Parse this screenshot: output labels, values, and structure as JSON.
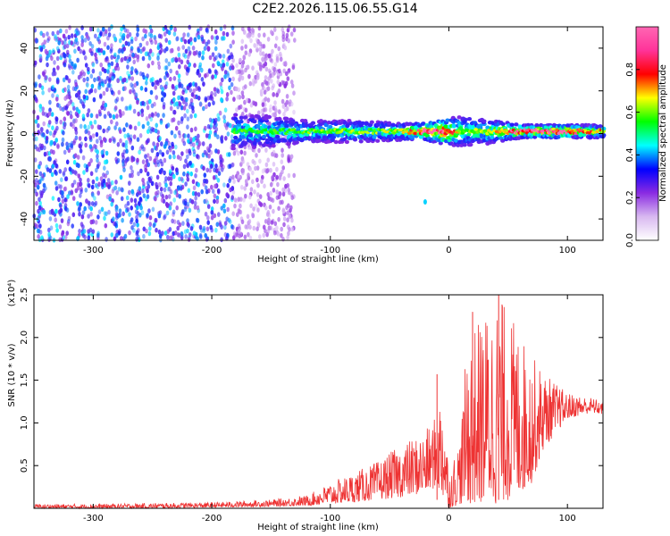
{
  "figure": {
    "title": "C2E2.2026.115.06.55.G14"
  },
  "chart_data": [
    {
      "type": "heatmap",
      "xlabel": "Height of straight line (km)",
      "ylabel": "Frequency (Hz)",
      "xlim": [
        -350,
        130
      ],
      "ylim": [
        -50,
        50
      ],
      "xticks": [
        -300,
        -200,
        -100,
        0,
        100
      ],
      "xtick_labels": [
        "-300",
        "-200",
        "-100",
        "0",
        "100"
      ],
      "yticks": [
        -40,
        -20,
        0,
        20,
        40
      ],
      "ytick_labels": [
        "-40",
        "-20",
        "0",
        "20",
        "40"
      ],
      "colorbar": {
        "label": "Normalized spectral amplitude",
        "range": [
          0,
          1
        ],
        "ticks": [
          0.0,
          0.2,
          0.4,
          0.6,
          0.8
        ],
        "tick_labels": [
          "0.0",
          "0.2",
          "0.4",
          "0.6",
          "0.8"
        ],
        "colors": [
          "#ffffff",
          "#8a2be2",
          "#2020ff",
          "#00ffff",
          "#00ff00",
          "#ffff00",
          "#ff0000",
          "#ff69b4"
        ]
      },
      "noise_region": {
        "x": [
          -350,
          -130
        ],
        "amplitude": 0.12
      },
      "signal_band": {
        "x_start": -182,
        "x_end": 130,
        "centre_frequency": 1,
        "points": [
          {
            "x": -180,
            "halfwidth": 8,
            "peak": 0.45
          },
          {
            "x": -150,
            "halfwidth": 7,
            "peak": 0.45
          },
          {
            "x": -120,
            "halfwidth": 5,
            "peak": 0.48
          },
          {
            "x": -80,
            "halfwidth": 5,
            "peak": 0.5
          },
          {
            "x": -40,
            "halfwidth": 4,
            "peak": 0.55
          },
          {
            "x": -20,
            "halfwidth": 4,
            "peak": 0.9
          },
          {
            "x": -5,
            "halfwidth": 6,
            "peak": 0.95
          },
          {
            "x": 10,
            "halfwidth": 7,
            "peak": 0.5
          },
          {
            "x": 30,
            "halfwidth": 6,
            "peak": 0.52
          },
          {
            "x": 60,
            "halfwidth": 3,
            "peak": 0.88
          },
          {
            "x": 90,
            "halfwidth": 3,
            "peak": 0.9
          },
          {
            "x": 130,
            "halfwidth": 3,
            "peak": 0.62
          }
        ],
        "outliers": [
          {
            "x": -20,
            "y": -32,
            "value": 0.4
          }
        ]
      }
    },
    {
      "type": "line",
      "xlabel": "Height of straight line (km)",
      "ylabel": "SNR (10 * v/v)",
      "scale_label": "(x10⁴)",
      "xlim": [
        -350,
        130
      ],
      "ylim": [
        0,
        2.5
      ],
      "xticks": [
        -300,
        -200,
        -100,
        0,
        100
      ],
      "xtick_labels": [
        "-300",
        "-200",
        "-100",
        "0",
        "100"
      ],
      "yticks": [
        0.5,
        1.0,
        1.5,
        2.0,
        2.5
      ],
      "ytick_labels": [
        "0.5",
        "1.0",
        "1.5",
        "2.0",
        "2.5"
      ],
      "series": [
        {
          "name": "SNR",
          "color": "#ee3333",
          "envelope": {
            "x": [
              -350,
              -300,
              -250,
              -200,
              -150,
              -120,
              -100,
              -80,
              -60,
              -40,
              -20,
              -10,
              -5,
              0,
              10,
              15,
              20,
              30,
              40,
              45,
              55,
              70,
              80,
              100,
              120,
              130
            ],
            "low": [
              0.0,
              0.0,
              0.0,
              0.01,
              0.02,
              0.03,
              0.05,
              0.07,
              0.1,
              0.13,
              0.18,
              0.25,
              0.1,
              0.0,
              0.05,
              0.05,
              0.05,
              0.05,
              0.05,
              0.08,
              0.1,
              0.3,
              0.7,
              1.05,
              1.12,
              1.1
            ],
            "high": [
              0.05,
              0.05,
              0.06,
              0.07,
              0.1,
              0.15,
              0.3,
              0.42,
              0.55,
              0.75,
              0.9,
              1.1,
              1.55,
              0.4,
              0.9,
              1.9,
              2.1,
              2.3,
              2.5,
              2.45,
              2.2,
              1.8,
              1.6,
              1.35,
              1.3,
              1.25
            ]
          },
          "spikes": [
            {
              "x": -10,
              "y": 1.57
            },
            {
              "x": 20,
              "y": 2.3
            },
            {
              "x": 42,
              "y": 2.5
            }
          ]
        }
      ]
    }
  ]
}
